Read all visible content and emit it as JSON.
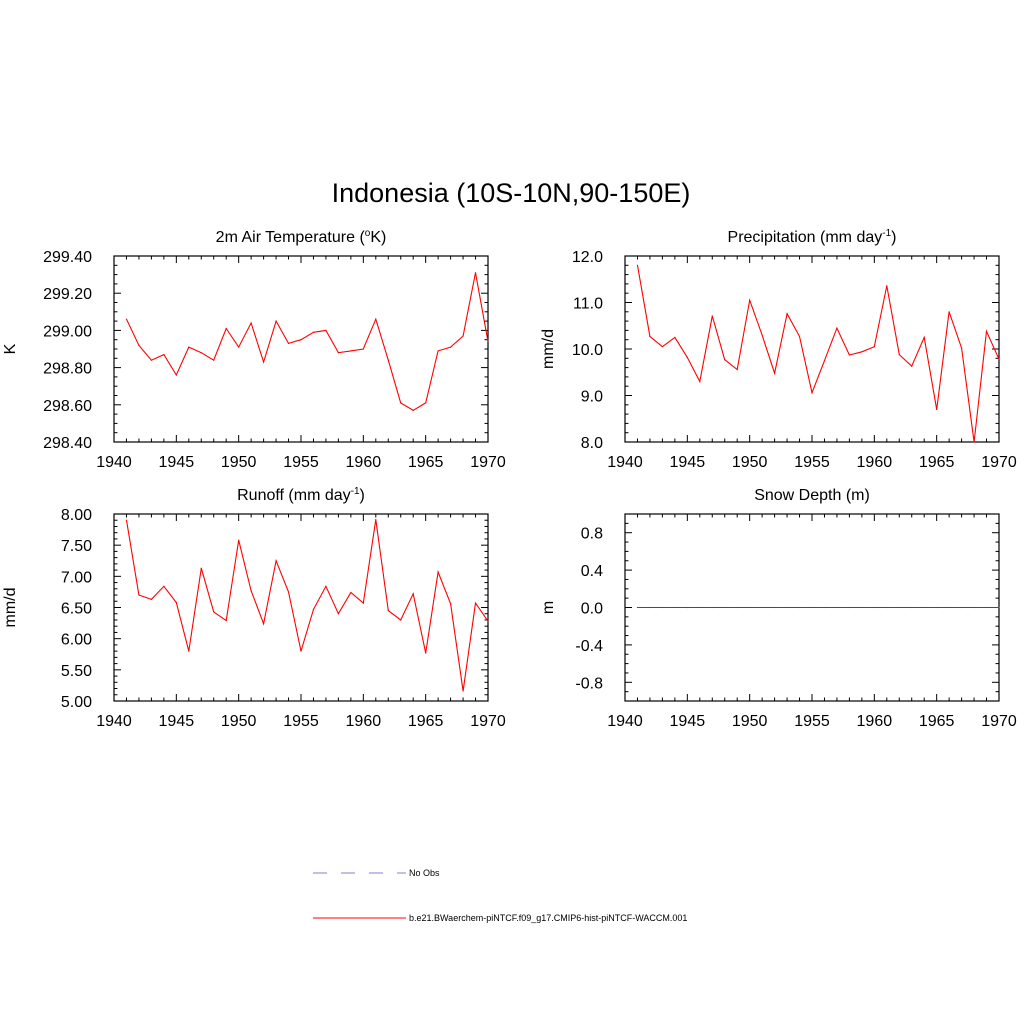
{
  "figure": {
    "title": "Indonesia (10S-10N,90-150E)"
  },
  "legend": {
    "obs_label": "No Obs",
    "obs_color": "#9999dd",
    "model_label": "b.e21.BWaerchem-piNTCF.f09_g17.CMIP6-hist-piNTCF-WACCM.001",
    "model_color": "#ff0000"
  },
  "chart_data": [
    {
      "type": "line",
      "id": "temp",
      "title_main": "2m Air Temperature (",
      "title_sup": "o",
      "title_tail": "K)",
      "ylabel": "K",
      "xlabel": "",
      "xlim": [
        1940,
        1970
      ],
      "ylim": [
        298.4,
        299.4
      ],
      "xticks": [
        1940,
        1945,
        1950,
        1955,
        1960,
        1965,
        1970
      ],
      "xtick_labels": [
        "1940",
        "1945",
        "1950",
        "1955",
        "1960",
        "1965",
        "1970"
      ],
      "yticks": [
        298.4,
        298.6,
        298.8,
        299.0,
        299.2,
        299.4
      ],
      "ytick_labels": [
        "298.40",
        "298.60",
        "298.80",
        "299.00",
        "299.20",
        "299.40"
      ],
      "y_minor_step": 0.05,
      "x_minor_step": 1,
      "series": [
        {
          "color": "#ff0000",
          "x": [
            1941,
            1942,
            1943,
            1944,
            1945,
            1946,
            1947,
            1948,
            1949,
            1950,
            1951,
            1952,
            1953,
            1954,
            1955,
            1956,
            1957,
            1958,
            1959,
            1960,
            1961,
            1962,
            1963,
            1964,
            1965,
            1966,
            1967,
            1968,
            1969,
            1970
          ],
          "values": [
            299.06,
            298.92,
            298.84,
            298.87,
            298.76,
            298.91,
            298.88,
            298.84,
            299.01,
            298.91,
            299.04,
            298.83,
            299.05,
            298.93,
            298.95,
            298.99,
            299.0,
            298.88,
            298.89,
            298.9,
            299.06,
            298.84,
            298.61,
            298.57,
            298.61,
            298.89,
            298.91,
            298.97,
            299.31,
            298.94
          ]
        }
      ]
    },
    {
      "type": "line",
      "id": "precip",
      "title_main": "Precipitation (mm day",
      "title_sup": "-1",
      "title_tail": ")",
      "ylabel": "mm/d",
      "xlabel": "",
      "xlim": [
        1940,
        1970
      ],
      "ylim": [
        8.0,
        12.0
      ],
      "xticks": [
        1940,
        1945,
        1950,
        1955,
        1960,
        1965,
        1970
      ],
      "xtick_labels": [
        "1940",
        "1945",
        "1950",
        "1955",
        "1960",
        "1965",
        "1970"
      ],
      "yticks": [
        8.0,
        9.0,
        10.0,
        11.0,
        12.0
      ],
      "ytick_labels": [
        "8.0",
        "9.0",
        "10.0",
        "11.0",
        "12.0"
      ],
      "y_minor_step": 0.2,
      "x_minor_step": 1,
      "series": [
        {
          "color": "#ff0000",
          "x": [
            1941,
            1942,
            1943,
            1944,
            1945,
            1946,
            1947,
            1948,
            1949,
            1950,
            1951,
            1952,
            1953,
            1954,
            1955,
            1956,
            1957,
            1958,
            1959,
            1960,
            1961,
            1962,
            1963,
            1964,
            1965,
            1966,
            1967,
            1968,
            1969,
            1970
          ],
          "values": [
            11.8,
            10.27,
            10.05,
            10.25,
            9.82,
            9.3,
            10.71,
            9.77,
            9.56,
            11.05,
            10.3,
            9.48,
            10.76,
            10.27,
            9.06,
            9.75,
            10.45,
            9.87,
            9.94,
            10.05,
            11.36,
            9.88,
            9.63,
            10.25,
            8.7,
            10.8,
            10.02,
            8.0,
            10.38,
            9.78
          ]
        }
      ]
    },
    {
      "type": "line",
      "id": "runoff",
      "title_main": "Runoff (mm day",
      "title_sup": "-1",
      "title_tail": ")",
      "ylabel": "mm/d",
      "xlabel": "",
      "xlim": [
        1940,
        1970
      ],
      "ylim": [
        5.0,
        8.0
      ],
      "xticks": [
        1940,
        1945,
        1950,
        1955,
        1960,
        1965,
        1970
      ],
      "xtick_labels": [
        "1940",
        "1945",
        "1950",
        "1955",
        "1960",
        "1965",
        "1970"
      ],
      "yticks": [
        5.0,
        5.5,
        6.0,
        6.5,
        7.0,
        7.5,
        8.0
      ],
      "ytick_labels": [
        "5.00",
        "5.50",
        "6.00",
        "6.50",
        "7.00",
        "7.50",
        "8.00"
      ],
      "y_minor_step": 0.1,
      "x_minor_step": 1,
      "series": [
        {
          "color": "#ff0000",
          "x": [
            1941,
            1942,
            1943,
            1944,
            1945,
            1946,
            1947,
            1948,
            1949,
            1950,
            1951,
            1952,
            1953,
            1954,
            1955,
            1956,
            1957,
            1958,
            1959,
            1960,
            1961,
            1962,
            1963,
            1964,
            1965,
            1966,
            1967,
            1968,
            1969,
            1970
          ],
          "values": [
            7.9,
            6.7,
            6.63,
            6.84,
            6.58,
            5.8,
            7.13,
            6.43,
            6.29,
            7.58,
            6.77,
            6.24,
            7.25,
            6.75,
            5.8,
            6.47,
            6.84,
            6.4,
            6.74,
            6.57,
            7.91,
            6.45,
            6.3,
            6.72,
            5.77,
            7.07,
            6.56,
            5.16,
            6.57,
            6.28
          ]
        }
      ]
    },
    {
      "type": "line",
      "id": "snow",
      "title_main": "Snow Depth (m)",
      "title_sup": "",
      "title_tail": "",
      "ylabel": "m",
      "xlabel": "",
      "xlim": [
        1940,
        1970
      ],
      "ylim": [
        -1.0,
        1.0
      ],
      "xticks": [
        1940,
        1945,
        1950,
        1955,
        1960,
        1965,
        1970
      ],
      "xtick_labels": [
        "1940",
        "1945",
        "1950",
        "1955",
        "1960",
        "1965",
        "1970"
      ],
      "yticks": [
        -0.8,
        -0.4,
        0.0,
        0.4,
        0.8
      ],
      "ytick_labels": [
        "-0.8",
        "-0.4",
        "0.0",
        "0.4",
        "0.8"
      ],
      "y_minor_step": 0.1,
      "x_minor_step": 1,
      "series": [
        {
          "color": "#ff0000",
          "x": [
            1941,
            1942,
            1943,
            1944,
            1945,
            1946,
            1947,
            1948,
            1949,
            1950,
            1951,
            1952,
            1953,
            1954,
            1955,
            1956,
            1957,
            1958,
            1959,
            1960,
            1961,
            1962,
            1963,
            1964,
            1965,
            1966,
            1967,
            1968,
            1969,
            1970
          ],
          "values": [
            0,
            0,
            0,
            0,
            0,
            0,
            0,
            0,
            0,
            0,
            0,
            0,
            0,
            0,
            0,
            0,
            0,
            0,
            0,
            0,
            0,
            0,
            0,
            0,
            0,
            0,
            0,
            0,
            0,
            0
          ]
        }
      ]
    }
  ]
}
